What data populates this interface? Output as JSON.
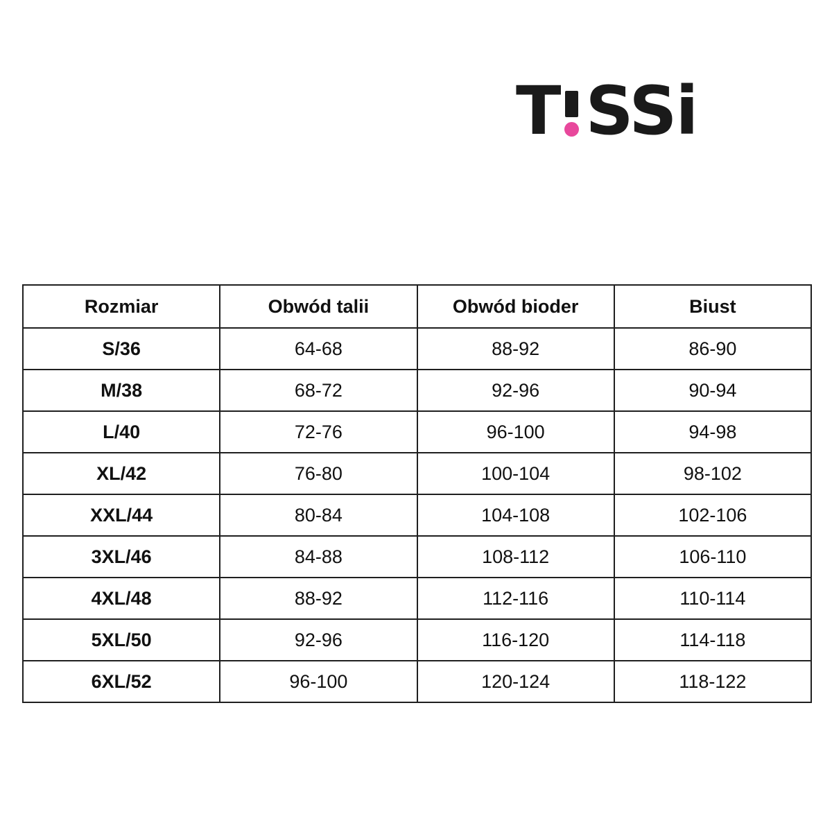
{
  "logo": {
    "t": "T",
    "exclamation": "!",
    "ss": "SS",
    "i": "i",
    "letter_color": "#1a1a1a",
    "dot_color": "#e8489c",
    "full_text": "T!SSi"
  },
  "size_chart": {
    "headers": [
      "Rozmiar",
      "Obwód talii",
      "Obwód bioder",
      "Biust"
    ],
    "rows": [
      [
        "S/36",
        "64-68",
        "88-92",
        "86-90"
      ],
      [
        "M/38",
        "68-72",
        "92-96",
        "90-94"
      ],
      [
        "L/40",
        "72-76",
        "96-100",
        "94-98"
      ],
      [
        "XL/42",
        "76-80",
        "100-104",
        "98-102"
      ],
      [
        "XXL/44",
        "80-84",
        "104-108",
        "102-106"
      ],
      [
        "3XL/46",
        "84-88",
        "108-112",
        "106-110"
      ],
      [
        "4XL/48",
        "88-92",
        "112-116",
        "110-114"
      ],
      [
        "5XL/50",
        "92-96",
        "116-120",
        "114-118"
      ],
      [
        "6XL/52",
        "96-100",
        "120-124",
        "118-122"
      ]
    ]
  }
}
